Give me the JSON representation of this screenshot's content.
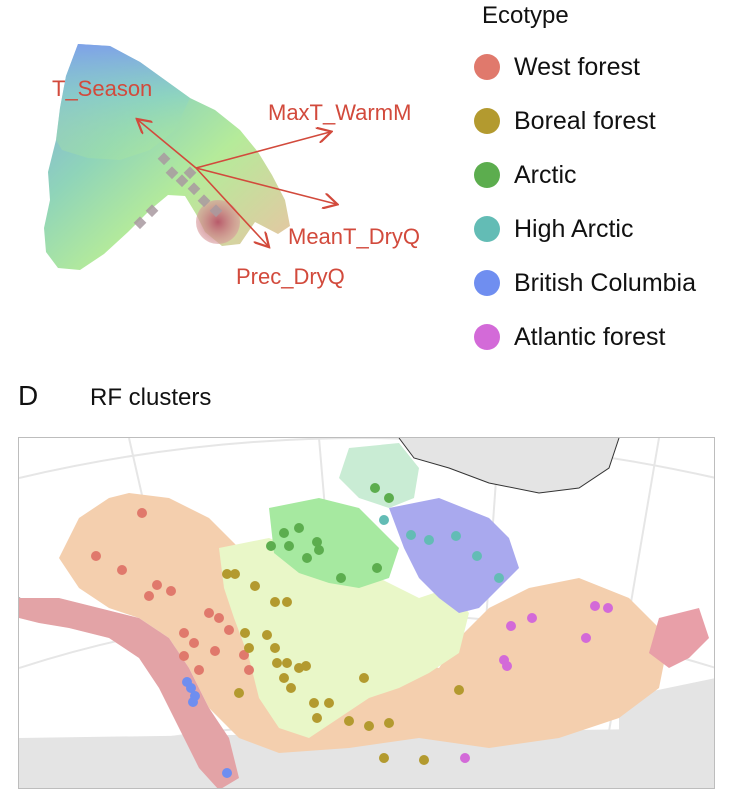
{
  "biplot": {
    "arrows": [
      {
        "label": "T_Season"
      },
      {
        "label": "MaxT_WarmM"
      },
      {
        "label": "MeanT_DryQ"
      },
      {
        "label": "Prec_DryQ"
      }
    ]
  },
  "legend": {
    "title": "Ecotype",
    "items": [
      {
        "label": "West forest",
        "color": "#e0796c"
      },
      {
        "label": "Boreal forest",
        "color": "#b39a2f"
      },
      {
        "label": "Arctic",
        "color": "#5cad4e"
      },
      {
        "label": "High Arctic",
        "color": "#63bcb5"
      },
      {
        "label": "British Columbia",
        "color": "#6f8ef0"
      },
      {
        "label": "Atlantic forest",
        "color": "#d36ad8"
      }
    ]
  },
  "panel": {
    "letter": "D",
    "title": "RF clusters"
  },
  "map": {
    "region_colors": {
      "west_coast": "#e3a3a6",
      "interior": "#f4cfae",
      "boreal": "#e9f7c8",
      "arctic": "#a6e9a0",
      "high_arctic": "#c9ecd4",
      "northeast": "#a9a9ee",
      "east_coast": "#e89fa8",
      "land_other": "#e4e4e4"
    },
    "sample_groups": [
      {
        "ecotype": "West forest",
        "color": "#e0796c"
      },
      {
        "ecotype": "Boreal forest",
        "color": "#b39a2f"
      },
      {
        "ecotype": "Arctic",
        "color": "#5cad4e"
      },
      {
        "ecotype": "High Arctic",
        "color": "#63bcb5"
      },
      {
        "ecotype": "British Columbia",
        "color": "#6f8ef0"
      },
      {
        "ecotype": "Atlantic forest",
        "color": "#d36ad8"
      }
    ]
  }
}
